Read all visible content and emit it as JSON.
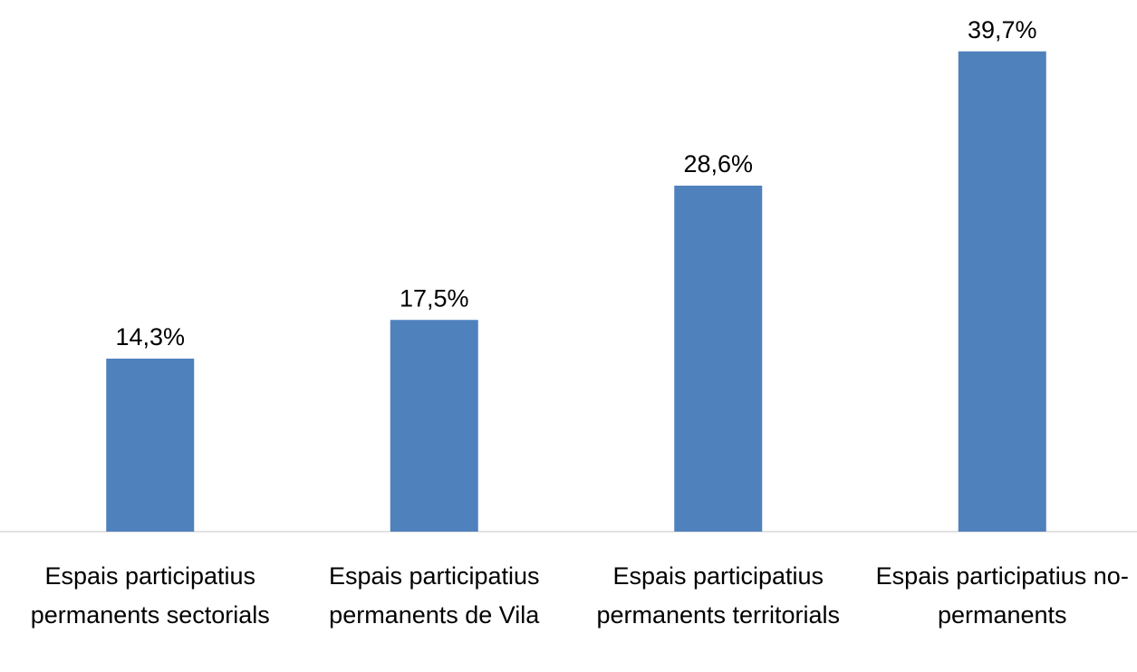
{
  "chart_data": {
    "type": "bar",
    "categories": [
      "Espais participatius permanents sectorials",
      "Espais participatius permanents de Vila",
      "Espais participatius permanents territorials",
      "Espais participatius no-permanents"
    ],
    "values": [
      14.3,
      17.5,
      28.6,
      39.7
    ],
    "value_labels": [
      "14,3%",
      "17,5%",
      "28,6%",
      "39,7%"
    ],
    "color": "#4f81bd",
    "ylim": [
      0,
      42
    ]
  }
}
